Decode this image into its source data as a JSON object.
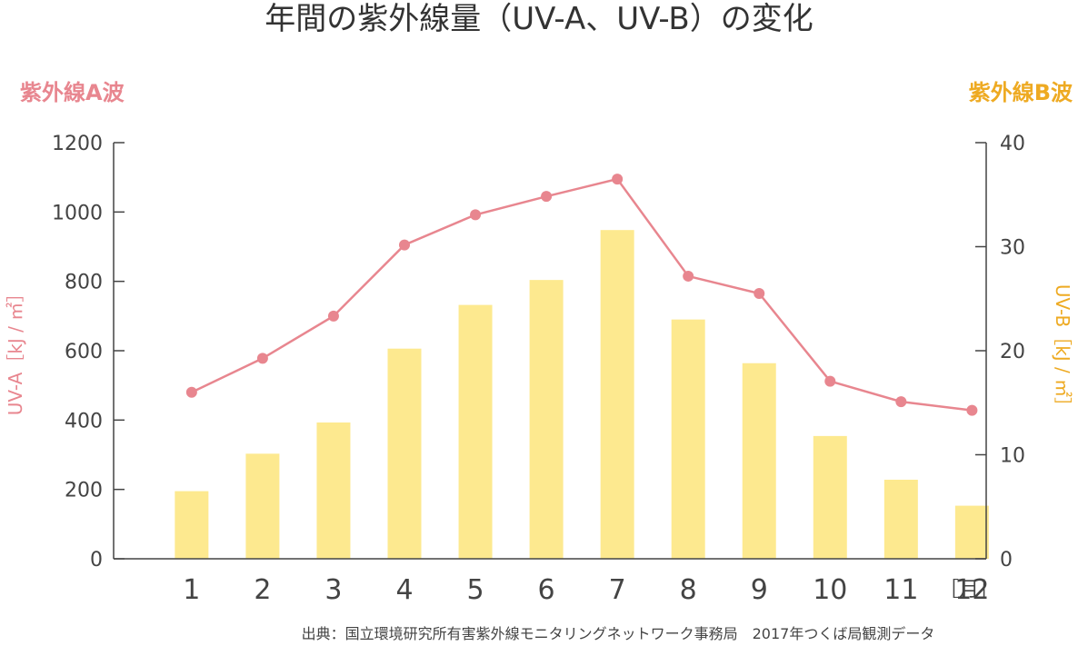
{
  "chart_data": {
    "type": "bar+line",
    "title": "年間の紫外線量（UV-A、UV-B）の変化",
    "categories": [
      "1",
      "2",
      "3",
      "4",
      "5",
      "6",
      "7",
      "8",
      "9",
      "10",
      "11",
      "12"
    ],
    "x_unit": "［月］",
    "series": [
      {
        "name": "紫外線A波",
        "type": "line",
        "axis": "left",
        "color": "#e8868f",
        "values": [
          480,
          578,
          700,
          905,
          992,
          1045,
          1095,
          815,
          765,
          512,
          453,
          428
        ]
      },
      {
        "name": "紫外線B波",
        "type": "bar",
        "axis": "right",
        "color": "#fde98f",
        "values": [
          6.5,
          10.1,
          13.1,
          20.2,
          24.4,
          26.8,
          31.6,
          23.0,
          18.8,
          11.8,
          7.6,
          5.1
        ]
      }
    ],
    "left_axis": {
      "label": "UV-A［kJ / ㎡］",
      "ylim": [
        0,
        1200
      ],
      "ticks": [
        "0",
        "200",
        "400",
        "600",
        "800",
        "1000",
        "1200"
      ]
    },
    "right_axis": {
      "label": "UV-B［kJ / ㎡］",
      "ylim": [
        0,
        40
      ],
      "ticks": [
        "0",
        "10",
        "20",
        "30",
        "40"
      ]
    },
    "source": "出典：国立環境研究所有害紫外線モニタリングネットワーク事務局　2017年つくば局観測データ"
  }
}
